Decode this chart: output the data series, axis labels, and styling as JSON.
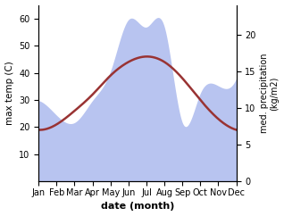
{
  "months": [
    "Jan",
    "Feb",
    "Mar",
    "Apr",
    "May",
    "Jun",
    "Jul",
    "Aug",
    "Sep",
    "Oct",
    "Nov",
    "Dec"
  ],
  "month_indices": [
    1,
    2,
    3,
    4,
    5,
    6,
    7,
    8,
    9,
    10,
    11,
    12
  ],
  "temperature": [
    19,
    21,
    26,
    32,
    39,
    44,
    46,
    44,
    38,
    30,
    23,
    19
  ],
  "precipitation": [
    11,
    9,
    8,
    11,
    15,
    22,
    21,
    21,
    8,
    12,
    13,
    14
  ],
  "temp_color": "#993333",
  "precip_fill_color": "#b8c4f0",
  "ylabel_left": "max temp (C)",
  "ylabel_right": "med. precipitation\n(kg/m2)",
  "xlabel": "date (month)",
  "ylim_left": [
    0,
    65
  ],
  "ylim_right": [
    0,
    24
  ],
  "yticks_left": [
    10,
    20,
    30,
    40,
    50,
    60
  ],
  "yticks_right": [
    0,
    5,
    10,
    15,
    20
  ],
  "temp_linewidth": 1.8
}
